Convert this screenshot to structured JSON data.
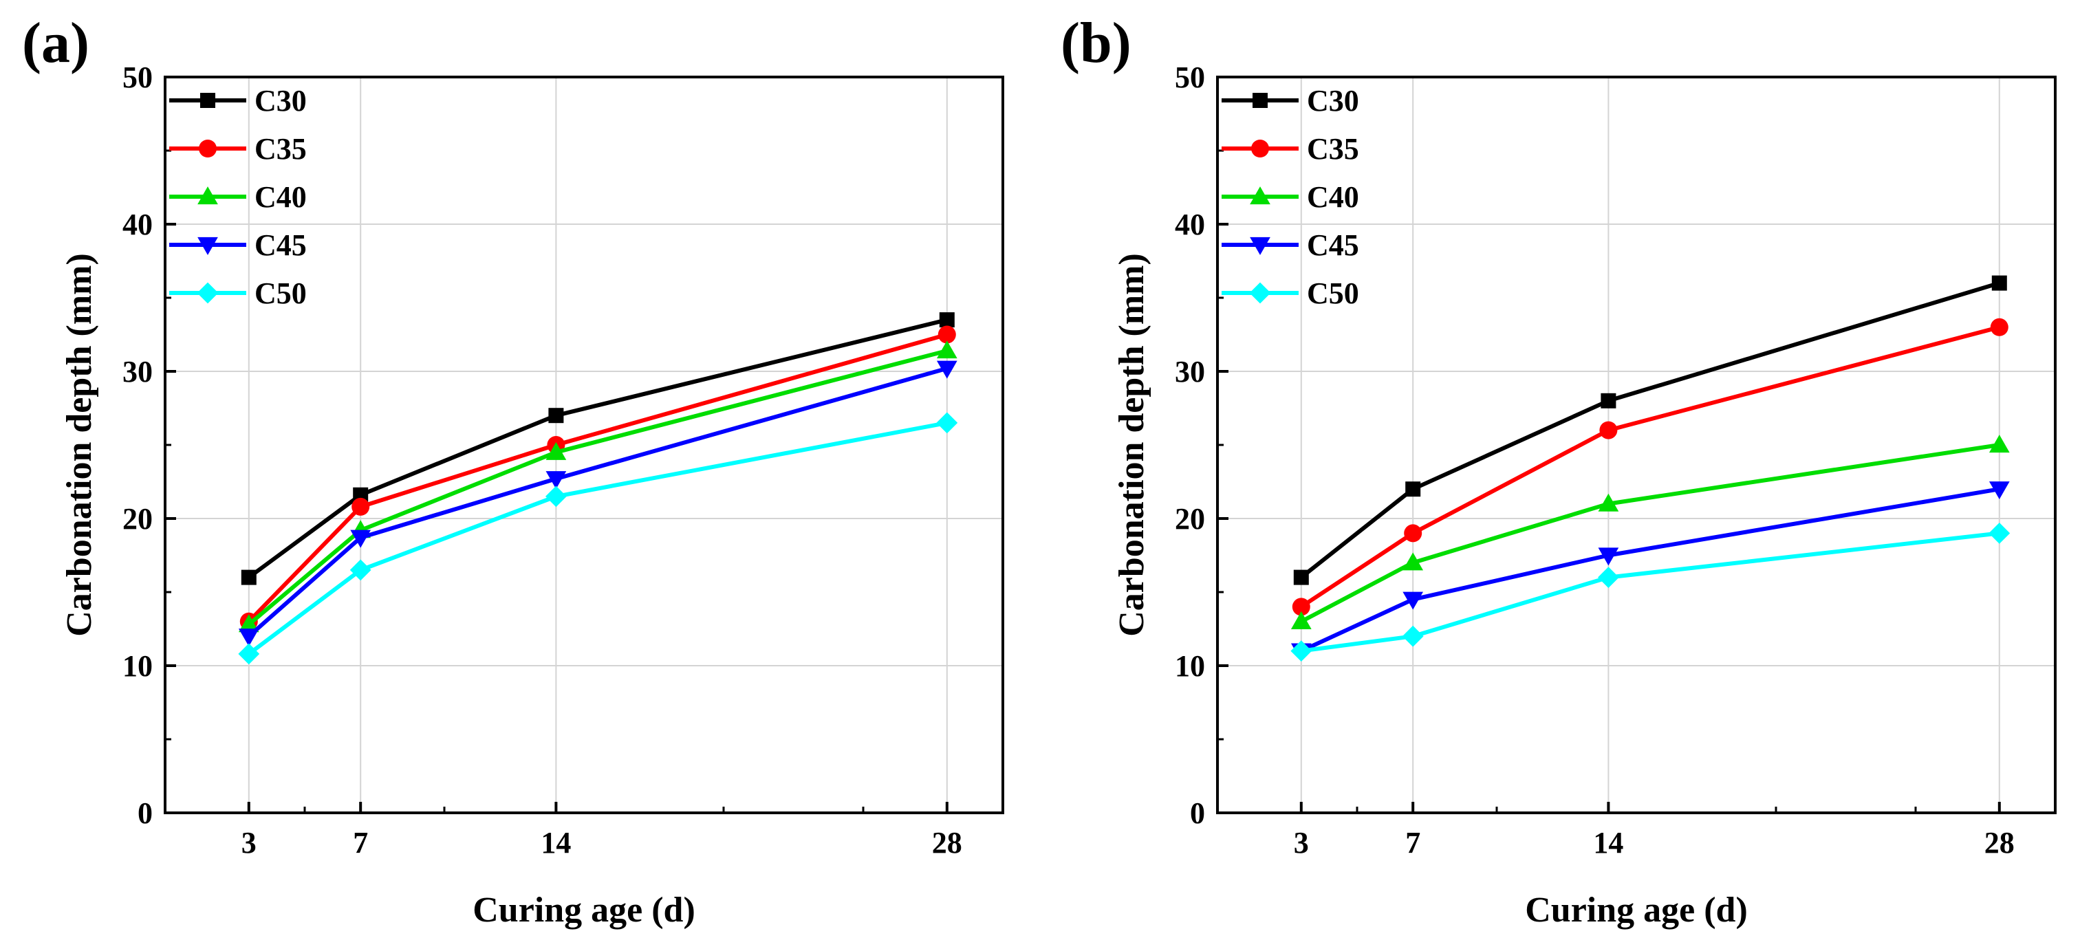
{
  "figure": {
    "panels": [
      {
        "label": "(a)"
      },
      {
        "label": "(b)"
      }
    ]
  },
  "chart_data": [
    {
      "type": "line",
      "panel": "(a)",
      "title": "",
      "xlabel": "Curing age (d)",
      "ylabel": "Carbonation depth (mm)",
      "x": [
        3,
        7,
        14,
        28
      ],
      "x_ticks": [
        3,
        7,
        14,
        28
      ],
      "xlim": [
        0,
        30
      ],
      "ylim": [
        0,
        50
      ],
      "y_ticks": [
        0,
        10,
        20,
        30,
        40,
        50
      ],
      "grid": true,
      "legend_position": "top-left",
      "series": [
        {
          "name": "C30",
          "color": "#000000",
          "marker": "square",
          "values": [
            16.0,
            21.6,
            27.0,
            33.5
          ]
        },
        {
          "name": "C35",
          "color": "#ff0000",
          "marker": "circle",
          "values": [
            13.0,
            20.8,
            25.0,
            32.5
          ]
        },
        {
          "name": "C40",
          "color": "#00dd00",
          "marker": "triangle-up",
          "values": [
            12.8,
            19.2,
            24.5,
            31.4
          ]
        },
        {
          "name": "C45",
          "color": "#0000ff",
          "marker": "triangle-down",
          "values": [
            12.0,
            18.7,
            22.7,
            30.2
          ]
        },
        {
          "name": "C50",
          "color": "#00ffff",
          "marker": "diamond",
          "values": [
            10.8,
            16.5,
            21.5,
            26.5
          ]
        }
      ]
    },
    {
      "type": "line",
      "panel": "(b)",
      "title": "",
      "xlabel": "Curing age (d)",
      "ylabel": "Carbonation depth (mm)",
      "x": [
        3,
        7,
        14,
        28
      ],
      "x_ticks": [
        3,
        7,
        14,
        28
      ],
      "xlim": [
        0,
        30
      ],
      "ylim": [
        0,
        50
      ],
      "y_ticks": [
        0,
        10,
        20,
        30,
        40,
        50
      ],
      "grid": true,
      "legend_position": "top-left",
      "series": [
        {
          "name": "C30",
          "color": "#000000",
          "marker": "square",
          "values": [
            16.0,
            22.0,
            28.0,
            36.0
          ]
        },
        {
          "name": "C35",
          "color": "#ff0000",
          "marker": "circle",
          "values": [
            14.0,
            19.0,
            26.0,
            33.0
          ]
        },
        {
          "name": "C40",
          "color": "#00dd00",
          "marker": "triangle-up",
          "values": [
            13.0,
            17.0,
            21.0,
            25.0
          ]
        },
        {
          "name": "C45",
          "color": "#0000ff",
          "marker": "triangle-down",
          "values": [
            11.0,
            14.5,
            17.5,
            22.0
          ]
        },
        {
          "name": "C50",
          "color": "#00ffff",
          "marker": "diamond",
          "values": [
            11.0,
            12.0,
            16.0,
            19.0
          ]
        }
      ]
    }
  ]
}
